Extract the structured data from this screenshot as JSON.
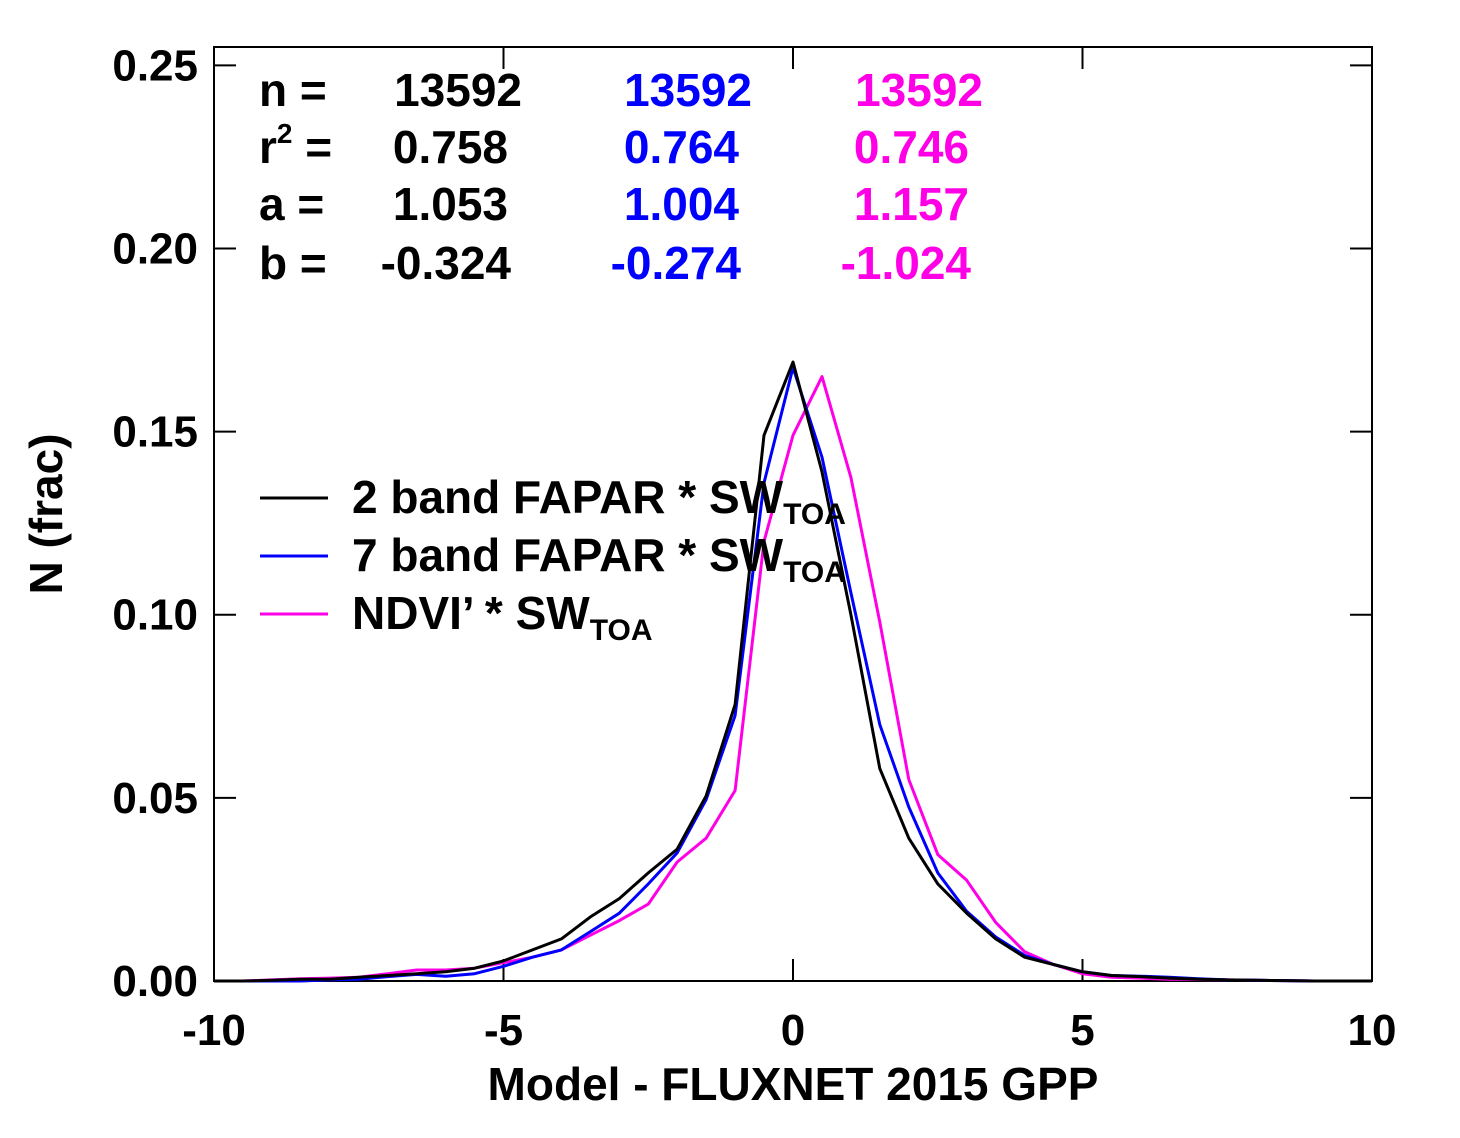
{
  "chart_data": {
    "type": "line",
    "title": "",
    "xlabel": "Model - FLUXNET 2015 GPP",
    "ylabel": "N (frac)",
    "xlim": [
      -10,
      10
    ],
    "ylim": [
      0,
      0.255
    ],
    "xticks": [
      -10,
      -5,
      0,
      5,
      10
    ],
    "xtick_labels": [
      "-10",
      "-5",
      "0",
      "5",
      "10"
    ],
    "yticks": [
      0,
      0.05,
      0.1,
      0.15,
      0.2,
      0.25
    ],
    "ytick_labels": [
      "0.00",
      "0.05",
      "0.10",
      "0.15",
      "0.20",
      "0.25"
    ],
    "x": [
      -10,
      -9.5,
      -9,
      -8.5,
      -8,
      -7.5,
      -7,
      -6.5,
      -6,
      -5.5,
      -5,
      -4.5,
      -4,
      -3.5,
      -3,
      -2.5,
      -2,
      -1.5,
      -1,
      -0.5,
      0,
      0.5,
      1,
      1.5,
      2,
      2.5,
      3,
      3.5,
      4,
      4.5,
      5,
      5.5,
      6,
      6.5,
      7,
      7.5,
      8,
      8.5,
      9,
      9.5,
      10
    ],
    "series": [
      {
        "name": "2 band FAPAR * SW",
        "name_sub": "TOA",
        "color": "#000000",
        "values": [
          0,
          0,
          0.0002,
          0.0005,
          0.0005,
          0.001,
          0.0015,
          0.002,
          0.0025,
          0.0035,
          0.0055,
          0.0085,
          0.0115,
          0.0175,
          0.0225,
          0.0295,
          0.036,
          0.0505,
          0.0755,
          0.149,
          0.169,
          0.139,
          0.1,
          0.058,
          0.039,
          0.0265,
          0.0185,
          0.0115,
          0.0065,
          0.0045,
          0.0025,
          0.0015,
          0.0012,
          0.0008,
          0.0005,
          0.0003,
          0.0002,
          0.0001,
          0,
          0,
          0
        ]
      },
      {
        "name": "7 band FAPAR * SW",
        "name_sub": "TOA",
        "color": "#0000ff",
        "values": [
          0,
          0,
          0,
          0,
          0.0003,
          0.0005,
          0.0012,
          0.0018,
          0.0013,
          0.002,
          0.004,
          0.0065,
          0.0085,
          0.0135,
          0.0185,
          0.0265,
          0.035,
          0.0495,
          0.0725,
          0.136,
          0.1675,
          0.143,
          0.106,
          0.07,
          0.0475,
          0.0295,
          0.019,
          0.012,
          0.007,
          0.0045,
          0.0025,
          0.0015,
          0.0013,
          0.001,
          0.0006,
          0.0003,
          0.0002,
          0.0001,
          0,
          0,
          0
        ]
      },
      {
        "name": "NDVI’ * SW",
        "name_sub": "TOA",
        "color": "#ff00e6",
        "values": [
          0,
          0,
          0.0003,
          0.0006,
          0.0008,
          0.001,
          0.002,
          0.003,
          0.003,
          0.0035,
          0.005,
          0.0065,
          0.0085,
          0.0125,
          0.0165,
          0.021,
          0.0325,
          0.039,
          0.052,
          0.12,
          0.149,
          0.165,
          0.1375,
          0.098,
          0.055,
          0.0345,
          0.0275,
          0.016,
          0.008,
          0.0045,
          0.002,
          0.001,
          0.0008,
          0.0005,
          0.0004,
          0.0003,
          0.0002,
          0.0001,
          0,
          0,
          0
        ]
      }
    ],
    "legend_placement": "middle-left",
    "stats": {
      "rows": [
        {
          "label": "n =",
          "values": [
            "13592",
            "13592",
            "13592"
          ]
        },
        {
          "label": "r",
          "label_sup": "2",
          "label_tail": " =",
          "values": [
            "0.758",
            "0.764",
            "0.746"
          ]
        },
        {
          "label": "a =",
          "values": [
            "1.053",
            "1.004",
            "1.157"
          ]
        },
        {
          "label": "b =",
          "values": [
            "-0.324",
            "-0.274",
            "-1.024"
          ]
        }
      ]
    }
  }
}
